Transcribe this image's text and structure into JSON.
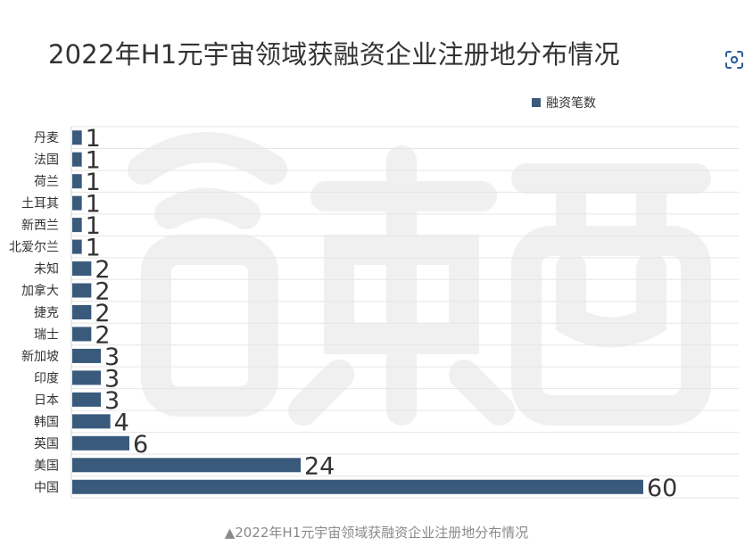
{
  "title": "2022年H1元宇宙领域获融资企业注册地分布情况",
  "caption": "▲2022年H1元宇宙领域获融资企业注册地分布情况",
  "icons": {
    "scan": "scan-icon"
  },
  "colors": {
    "bar": "#3a5a7c",
    "grid": "#e6e6e6",
    "watermark": "#f0f0f0"
  },
  "chart_data": {
    "type": "bar",
    "orientation": "horizontal",
    "categories": [
      "丹麦",
      "法国",
      "荷兰",
      "土耳其",
      "新西兰",
      "北爱尔兰",
      "未知",
      "加拿大",
      "捷克",
      "瑞士",
      "新加坡",
      "印度",
      "日本",
      "韩国",
      "英国",
      "美国",
      "中国"
    ],
    "series": [
      {
        "name": "融资笔数",
        "values": [
          1,
          1,
          1,
          1,
          1,
          1,
          2,
          2,
          2,
          2,
          3,
          3,
          3,
          4,
          6,
          24,
          60
        ]
      }
    ],
    "xlim": [
      0,
      70
    ],
    "grid": true,
    "legend": "top-right",
    "data_labels": true
  }
}
